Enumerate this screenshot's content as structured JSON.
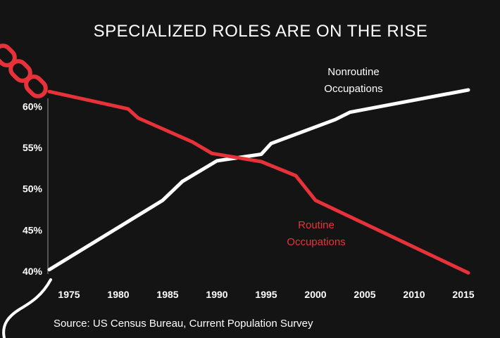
{
  "chart_data": {
    "type": "line",
    "title": "SPECIALIZED ROLES ARE ON THE RISE",
    "xlabel": "",
    "ylabel": "",
    "x_ticks": [
      "1975",
      "1980",
      "1985",
      "1990",
      "1995",
      "2000",
      "2005",
      "2010",
      "2015"
    ],
    "y_ticks": [
      "40%",
      "45%",
      "50%",
      "55%",
      "60%"
    ],
    "xlim": [
      1973,
      2016
    ],
    "ylim": [
      40,
      62
    ],
    "grid": false,
    "series": [
      {
        "name": "Nonroutine Occupations",
        "color": "#ffffff",
        "x": [
          1973,
          1984.5,
          1986.5,
          1990,
          1994.5,
          1995.5,
          2002,
          2003.5,
          2015.5
        ],
        "y": [
          40.2,
          48.6,
          50.9,
          53.4,
          54.2,
          55.5,
          58.4,
          59.3,
          62.0
        ]
      },
      {
        "name": "Routine Occupations",
        "color": "#e8323a",
        "x": [
          1973,
          1981,
          1982,
          1987.5,
          1989.5,
          1994.5,
          1998,
          2000,
          2015.5
        ],
        "y": [
          61.8,
          59.7,
          58.6,
          55.7,
          54.3,
          53.3,
          51.6,
          48.6,
          39.8
        ]
      }
    ],
    "annotations": {
      "nonroutine": [
        "Nonroutine",
        "Occupations"
      ],
      "routine": [
        "Routine",
        "Occupations"
      ]
    }
  },
  "source": "Source: US Census Bureau,  Current Population Survey",
  "colors": {
    "background": "#141414",
    "routine": "#e8323a",
    "nonroutine": "#ffffff",
    "axis": "#555555"
  }
}
